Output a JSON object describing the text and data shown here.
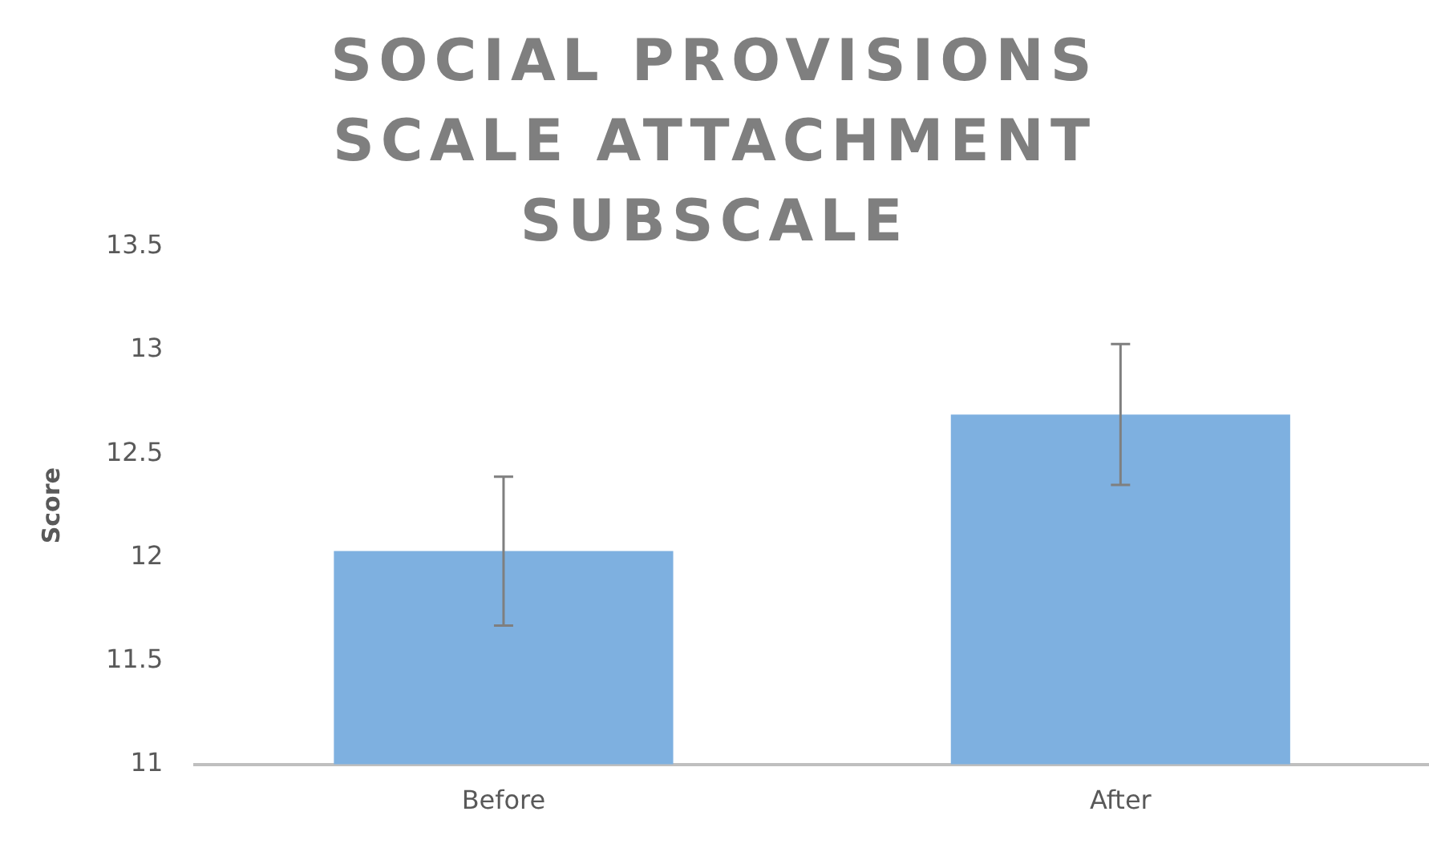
{
  "chart_data": {
    "type": "bar",
    "title": "SOCIAL PROVISIONS SCALE ATTACHMENT SUBSCALE",
    "ylabel": "Score",
    "categories": [
      "Before",
      "After"
    ],
    "values": [
      12.03,
      12.69
    ],
    "errors": [
      0.36,
      0.34
    ],
    "color": "#7eb0e0",
    "ylim": [
      11,
      13.5
    ],
    "yticks": [
      11,
      11.5,
      12,
      12.5,
      13,
      13.5
    ],
    "grid": false
  }
}
